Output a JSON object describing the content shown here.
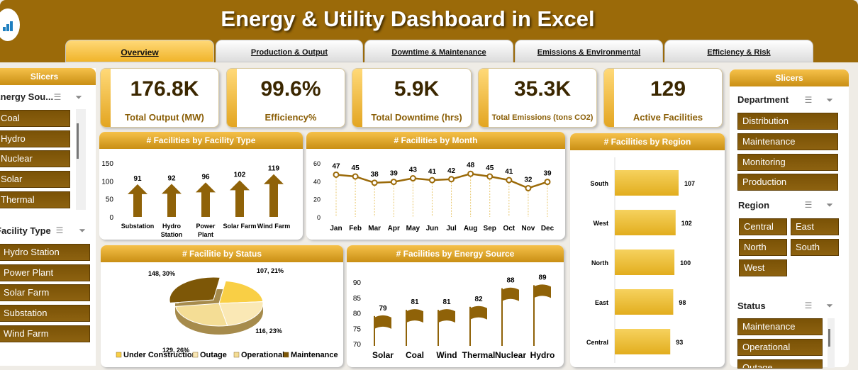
{
  "header": {
    "title": "Energy & Utility Dashboard in Excel"
  },
  "tabs": [
    {
      "label": "Overview",
      "active": true
    },
    {
      "label": "Production & Output"
    },
    {
      "label": "Downtime & Maintenance"
    },
    {
      "label": "Emissions & Environmental"
    },
    {
      "label": "Efficiency & Risk"
    }
  ],
  "left_slicers": {
    "header": "Slicers",
    "energy_source": {
      "title": "Energy Sou...",
      "items": [
        "Coal",
        "Hydro",
        "Nuclear",
        "Solar",
        "Thermal"
      ]
    },
    "facility_type": {
      "title": "Facility Type",
      "items": [
        "Hydro Station",
        "Power Plant",
        "Solar Farm",
        "Substation",
        "Wind Farm"
      ]
    }
  },
  "kpis": [
    {
      "value": "176.8K",
      "label": "Total Output (MW)"
    },
    {
      "value": "99.6%",
      "label": "Efficiency%"
    },
    {
      "value": "5.9K",
      "label": "Total Downtime (hrs)"
    },
    {
      "value": "35.3K",
      "label": "Total Emissions (tons CO2)"
    },
    {
      "value": "129",
      "label": "Active Facilities"
    }
  ],
  "chart_data": [
    {
      "type": "bar",
      "title": "# Facilities by Facility Type",
      "categories": [
        "Substation",
        "Hydro Station",
        "Power Plant",
        "Solar Farm",
        "Wind Farm"
      ],
      "values": [
        91,
        92,
        96,
        102,
        119
      ],
      "ylim": [
        0,
        150
      ],
      "yticks": [
        0,
        50,
        100,
        150
      ]
    },
    {
      "type": "line",
      "title": "# Facilities by  Month",
      "categories": [
        "Jan",
        "Feb",
        "Mar",
        "Apr",
        "May",
        "Jun",
        "Jul",
        "Aug",
        "Sep",
        "Oct",
        "Nov",
        "Dec"
      ],
      "values": [
        47,
        45,
        38,
        39,
        43,
        41,
        42,
        48,
        45,
        41,
        32,
        39
      ],
      "ylim": [
        0,
        60
      ],
      "yticks": [
        0,
        20,
        40,
        60
      ]
    },
    {
      "type": "bar",
      "title": "# Facilities by Region",
      "orientation": "horizontal",
      "categories": [
        "South",
        "West",
        "North",
        "East",
        "Central"
      ],
      "values": [
        107,
        102,
        100,
        98,
        93
      ]
    },
    {
      "type": "pie",
      "title": "# Facilitie by  Status",
      "slices": [
        {
          "name": "Under Construction",
          "value": 107,
          "label": "107, 21%",
          "color": "#f9cf45"
        },
        {
          "name": "Outage",
          "value": 116,
          "label": "116, 23%",
          "color": "#fae8b5"
        },
        {
          "name": "Operational",
          "value": 129,
          "label": "129, 26%",
          "color": "#f4dd95"
        },
        {
          "name": "Maintenance",
          "value": 148,
          "label": "148, 30%",
          "color": "#7d5707"
        }
      ]
    },
    {
      "type": "bar",
      "title": "# Facilities by  Energy Source",
      "categories": [
        "Solar",
        "Coal",
        "Wind",
        "Thermal",
        "Nuclear",
        "Hydro"
      ],
      "values": [
        79,
        81,
        81,
        82,
        88,
        89
      ],
      "ylim": [
        70,
        90
      ],
      "yticks": [
        70,
        75,
        80,
        85,
        90
      ]
    }
  ],
  "right_slicers": {
    "header": "Slicers",
    "department": {
      "title": "Department",
      "items": [
        "Distribution",
        "Maintenance",
        "Monitoring",
        "Production"
      ]
    },
    "region": {
      "title": "Region",
      "items": [
        "Central",
        "East",
        "North",
        "South",
        "West"
      ]
    },
    "status": {
      "title": "Status",
      "items": [
        "Maintenance",
        "Operational",
        "Outage"
      ]
    }
  },
  "colors": {
    "brand": "#9b6a09",
    "accent": "#f0b42a",
    "slicer_item": "#7a5206"
  }
}
